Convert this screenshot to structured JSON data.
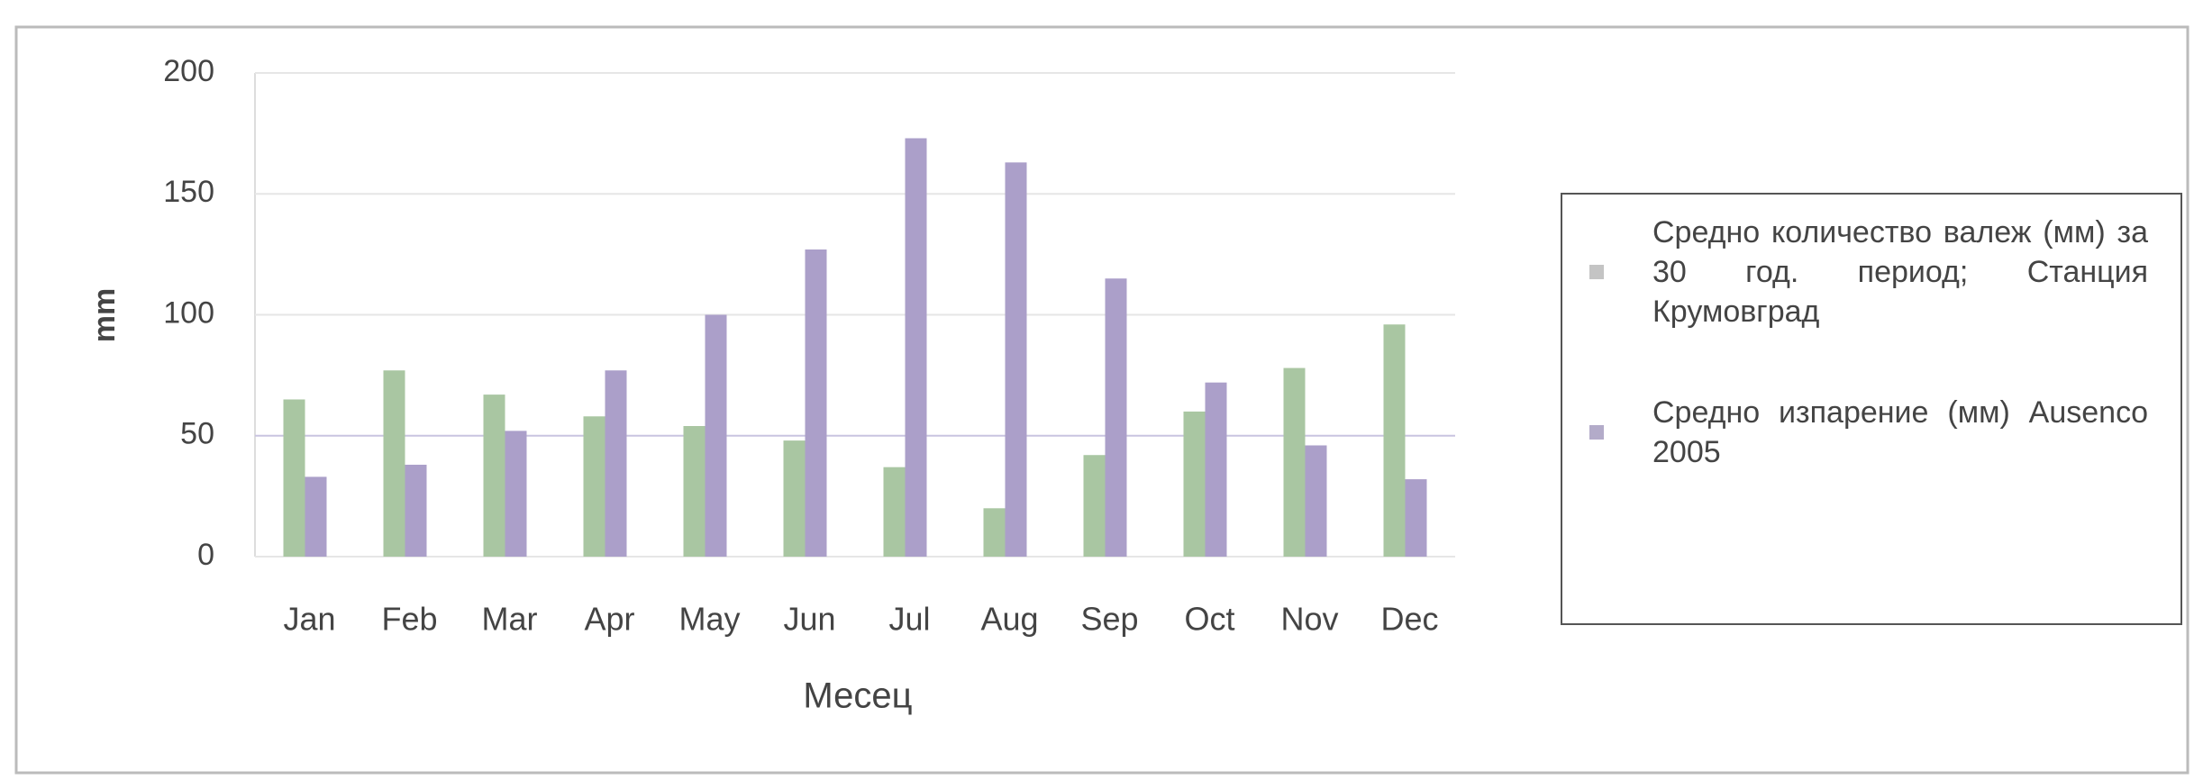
{
  "chart_data": {
    "type": "bar",
    "categories": [
      "Jan",
      "Feb",
      "Mar",
      "Apr",
      "May",
      "Jun",
      "Jul",
      "Aug",
      "Sep",
      "Oct",
      "Nov",
      "Dec"
    ],
    "series": [
      {
        "name": "Средно количество валеж (мм) за 30 год. период; Станция Крумовград",
        "color": "#a9c6a2",
        "values": [
          65,
          77,
          67,
          58,
          54,
          48,
          37,
          20,
          42,
          60,
          78,
          96
        ]
      },
      {
        "name": "Средно изпарение (мм) Ausenco 2005",
        "color": "#ab9fc9",
        "values": [
          33,
          38,
          52,
          77,
          100,
          127,
          173,
          163,
          115,
          72,
          46,
          32
        ]
      }
    ],
    "xlabel": "Месец",
    "ylabel": "mm",
    "ylim": [
      0,
      200
    ],
    "yticks": [
      0,
      50,
      100,
      150,
      200
    ],
    "grid": true,
    "legend": "right"
  }
}
